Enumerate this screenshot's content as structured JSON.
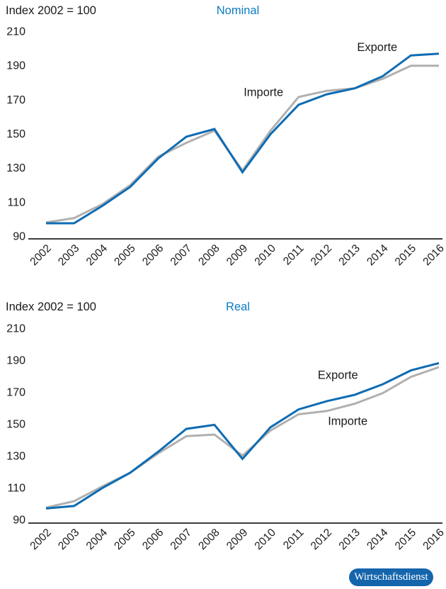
{
  "badge": {
    "label": "Wirtschaftsdienst",
    "bg_color": "#1565ac",
    "text_color": "#ffffff"
  },
  "colors": {
    "export_line": "#0e6cb3",
    "import_line": "#b0b0b0",
    "title_blue": "#0d7cc4",
    "axis": "#3d3d3d",
    "text": "#1a1a1a"
  },
  "chart_data": [
    {
      "type": "line",
      "title": "Nominal",
      "index_label": "Index 2002 = 100",
      "x": [
        2002,
        2003,
        2004,
        2005,
        2006,
        2007,
        2008,
        2009,
        2010,
        2011,
        2012,
        2013,
        2014,
        2015,
        2016
      ],
      "ylim": [
        90,
        210
      ],
      "yticks": [
        90,
        110,
        130,
        150,
        170,
        190,
        210
      ],
      "grid": false,
      "legend": "inline-labels",
      "series": [
        {
          "name": "Exporte",
          "color": "#0e6cb3",
          "values": [
            99,
            99,
            109,
            120,
            136.5,
            149,
            153.5,
            128.5,
            150.5,
            167.5,
            173.5,
            177,
            184,
            196,
            197
          ]
        },
        {
          "name": "Importe",
          "color": "#b0b0b0",
          "values": [
            99.5,
            102,
            110,
            121,
            137.5,
            145.5,
            152.5,
            129.5,
            152.5,
            172,
            175.5,
            177,
            182.5,
            190,
            190
          ]
        }
      ],
      "annotations": [
        {
          "text": "Exporte",
          "x": 2013.8,
          "y": 201
        },
        {
          "text": "Importe",
          "x": 2009.75,
          "y": 175
        }
      ]
    },
    {
      "type": "line",
      "title": "Real",
      "index_label": "Index 2002 = 100",
      "x": [
        2002,
        2003,
        2004,
        2005,
        2006,
        2007,
        2008,
        2009,
        2010,
        2011,
        2012,
        2013,
        2014,
        2015,
        2016
      ],
      "ylim": [
        90,
        210
      ],
      "yticks": [
        90,
        110,
        130,
        150,
        170,
        190,
        210
      ],
      "grid": false,
      "legend": "inline-labels",
      "series": [
        {
          "name": "Exporte",
          "color": "#0e6cb3",
          "values": [
            99,
            100.5,
            111.5,
            121,
            134,
            148,
            150.5,
            129.5,
            149,
            160,
            165,
            169,
            175.5,
            184,
            188.5
          ]
        },
        {
          "name": "Importe",
          "color": "#b0b0b0",
          "values": [
            99.5,
            103.5,
            112.5,
            121,
            133,
            143.5,
            144.5,
            131.5,
            147,
            157,
            159,
            163.5,
            170,
            180,
            186
          ]
        }
      ],
      "annotations": [
        {
          "text": "Exporte",
          "x": 2012.4,
          "y": 181.5
        },
        {
          "text": "Importe",
          "x": 2012.75,
          "y": 153
        }
      ]
    }
  ]
}
